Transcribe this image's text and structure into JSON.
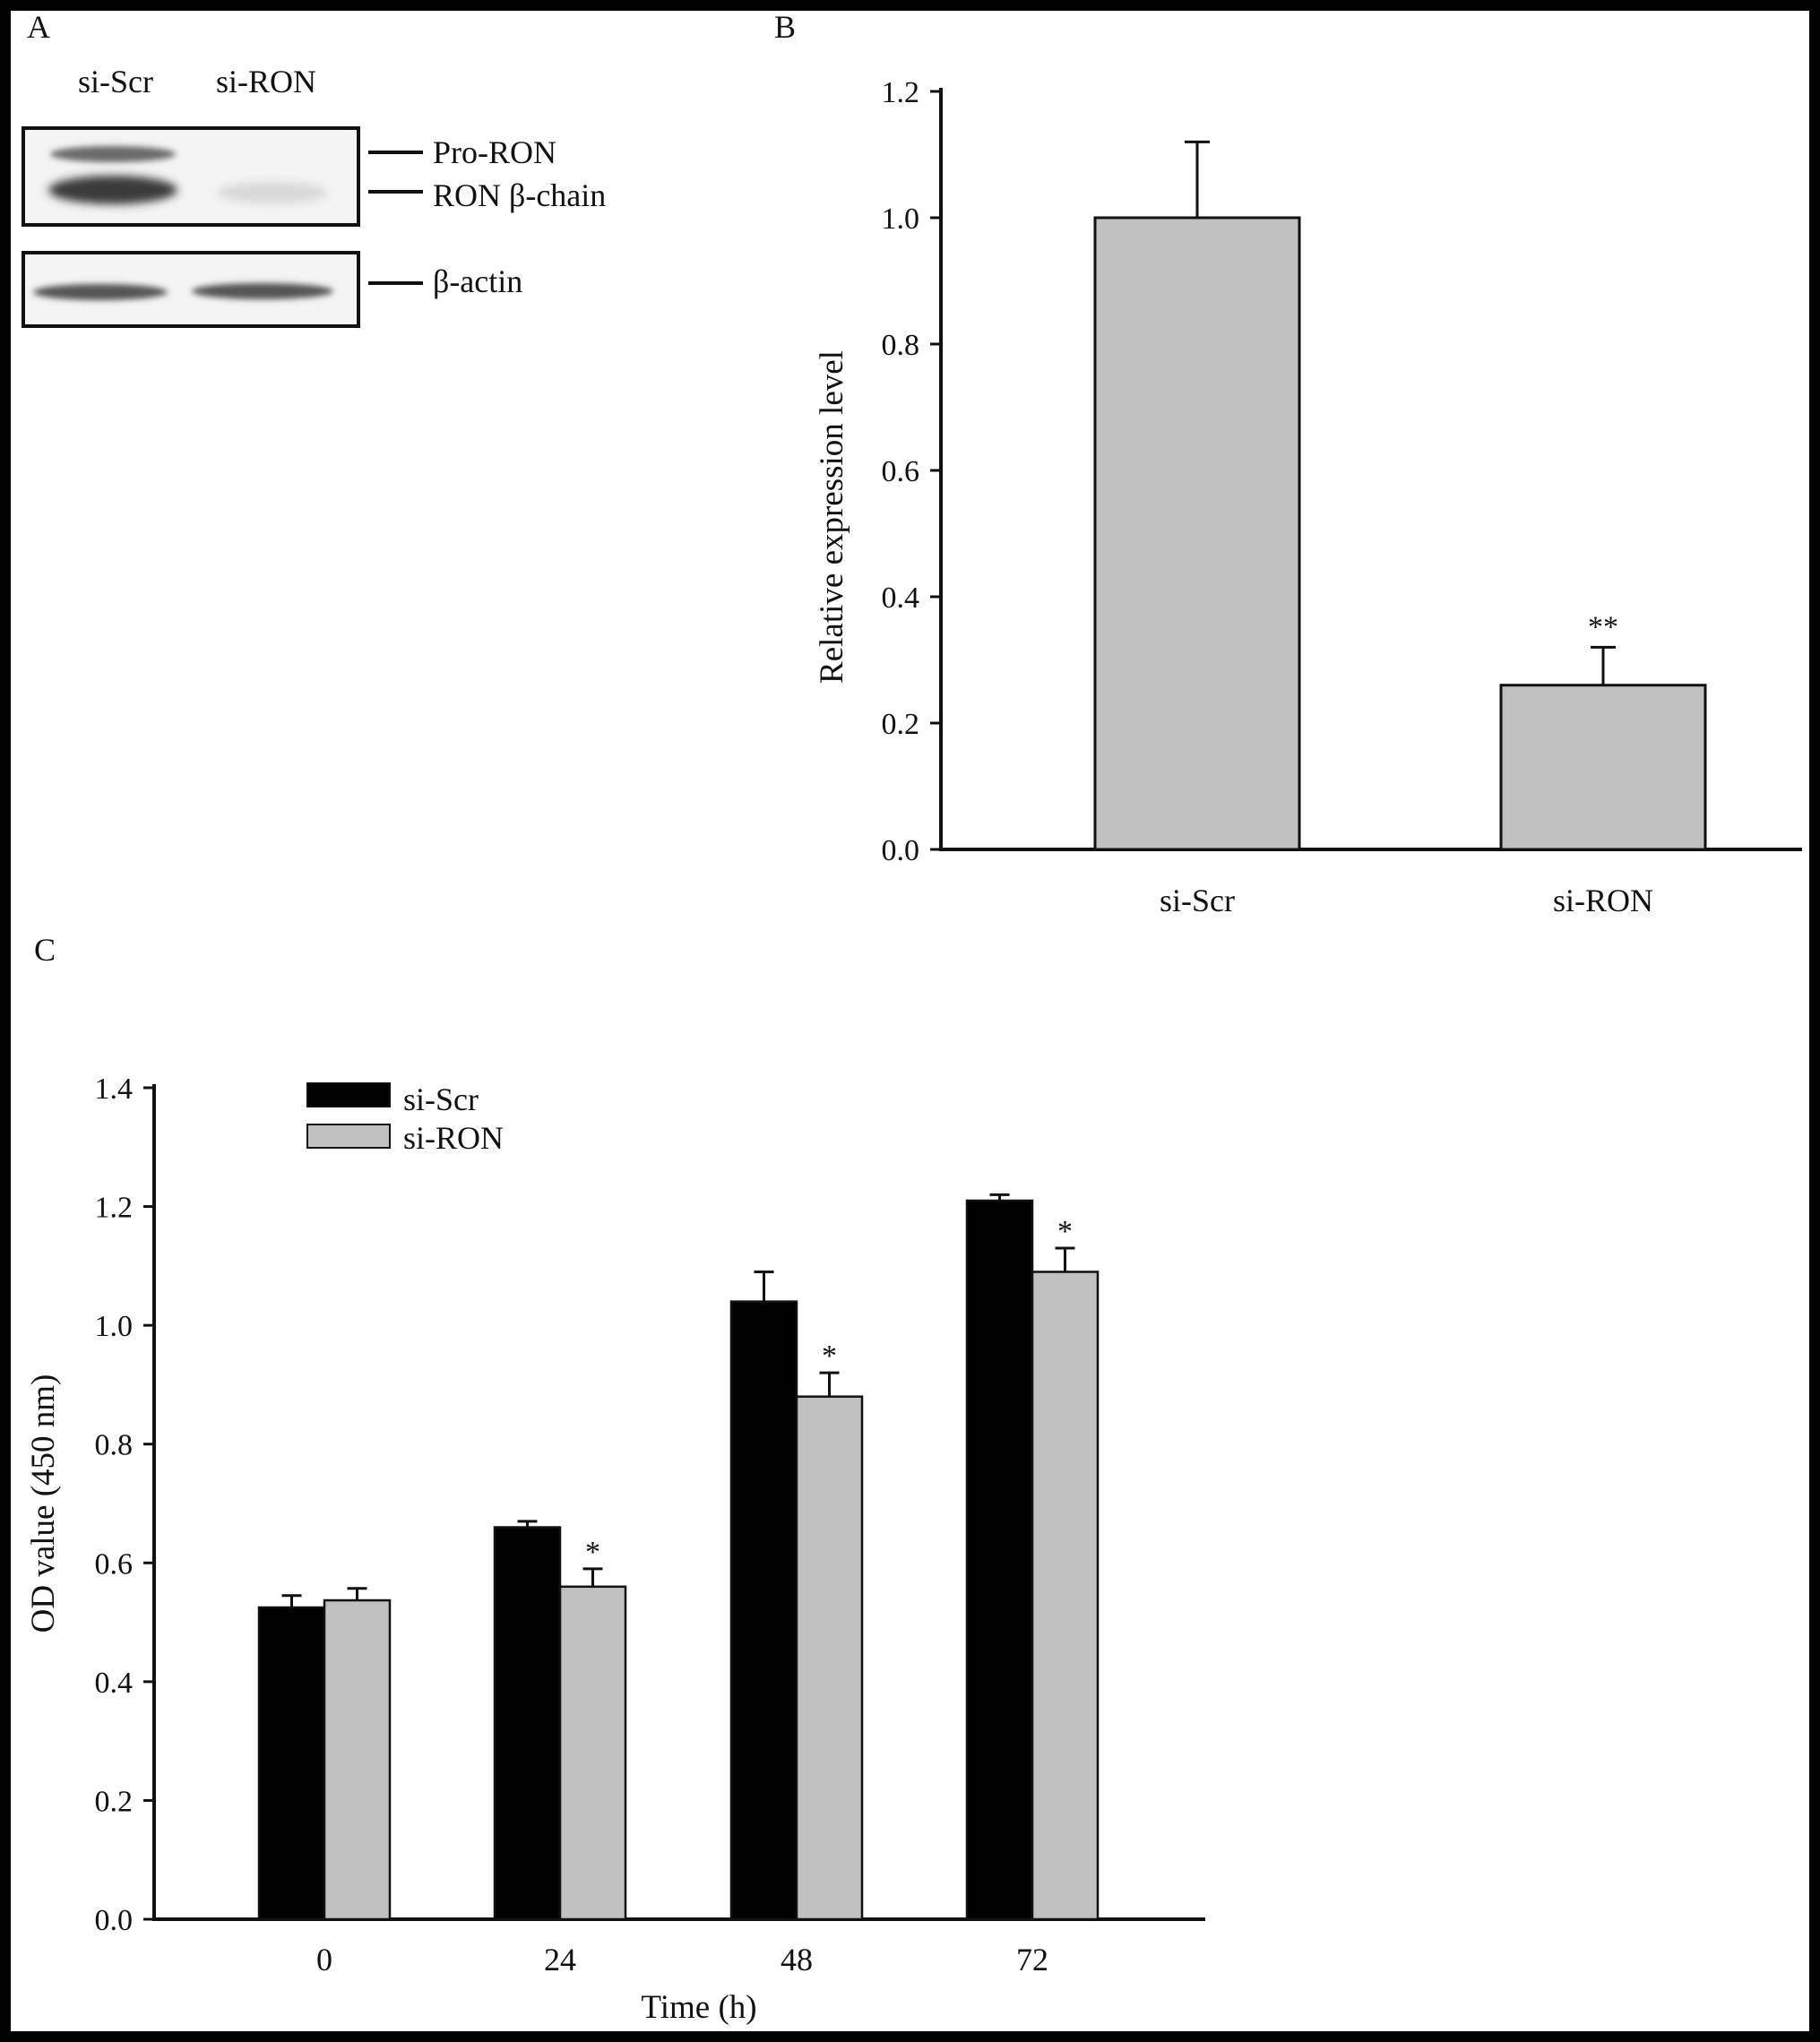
{
  "panels": {
    "a": "A",
    "b": "B",
    "c": "C"
  },
  "blot": {
    "lanes": [
      "si-Scr",
      "si-RON"
    ],
    "bands": [
      "Pro-RON",
      "RON β-chain",
      "β-actin"
    ]
  },
  "chart_data": [
    {
      "panel": "B",
      "type": "bar",
      "categories": [
        "si-Scr",
        "si-RON"
      ],
      "series": [
        {
          "values": [
            1.0,
            0.26
          ],
          "errors": [
            0.12,
            0.06
          ],
          "color": "#c0c0c0"
        }
      ],
      "annotations": [
        "",
        "**"
      ],
      "title": "",
      "xlabel": "",
      "ylabel": "Relative expression level",
      "ylim": [
        0,
        1.2
      ],
      "yticks": [
        "0.0",
        "0.2",
        "0.4",
        "0.6",
        "0.8",
        "1.0",
        "1.2"
      ],
      "grid": false
    },
    {
      "panel": "C",
      "type": "bar",
      "categories": [
        "0",
        "24",
        "48",
        "72"
      ],
      "series": [
        {
          "name": "si-Scr",
          "values": [
            0.525,
            0.66,
            1.04,
            1.21
          ],
          "errors": [
            0.02,
            0.01,
            0.05,
            0.01
          ],
          "color": "#000000"
        },
        {
          "name": "si-RON",
          "values": [
            0.537,
            0.56,
            0.88,
            1.09
          ],
          "errors": [
            0.02,
            0.03,
            0.04,
            0.04
          ],
          "color": "#c0c0c0"
        }
      ],
      "annotations": [
        "",
        "*",
        "*",
        "*"
      ],
      "title": "",
      "xlabel": "Time (h)",
      "ylabel": "OD value  (450 nm)",
      "ylim": [
        0,
        1.4
      ],
      "yticks": [
        "0.0",
        "0.2",
        "0.4",
        "0.6",
        "0.8",
        "1.0",
        "1.2",
        "1.4"
      ],
      "legend": "top-left",
      "grid": false
    }
  ]
}
